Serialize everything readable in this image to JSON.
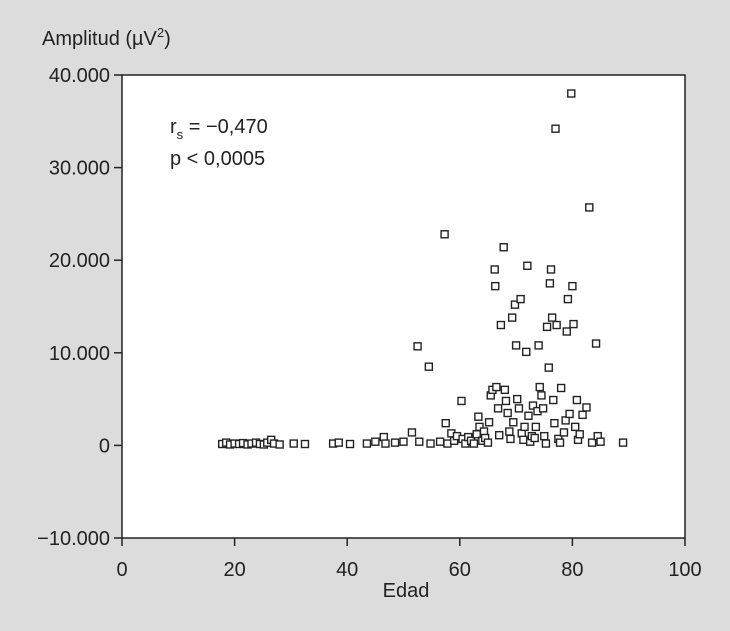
{
  "chart_data": {
    "type": "scatter",
    "ylabel": "Amplitud (µV²)",
    "ylabel_parts": {
      "main": "Amplitud (µV",
      "sup": "2",
      "close": ")"
    },
    "xlabel": "Edad",
    "xlim": [
      0,
      100
    ],
    "ylim": [
      -10000,
      40000
    ],
    "x_ticks": [
      0,
      20,
      40,
      60,
      80,
      100
    ],
    "x_tick_labels": [
      "0",
      "20",
      "40",
      "60",
      "80",
      "100"
    ],
    "y_ticks": [
      -10000,
      0,
      10000,
      20000,
      30000,
      40000
    ],
    "y_tick_labels": [
      "−10.000",
      "0",
      "10.000",
      "20.000",
      "30.000",
      "40.000"
    ],
    "grid": false,
    "annotations": {
      "rs_symbol": "r",
      "rs_sub": "s",
      "rs_value": " = −0,470",
      "p_text": "p < 0,0005"
    },
    "colors": {
      "background": "#dcdcdc",
      "plot_area": "#ffffff",
      "marker_stroke": "#222222"
    },
    "marker": "open-square",
    "series": [
      {
        "points": [
          [
            17.8,
            150
          ],
          [
            18.5,
            300
          ],
          [
            19.2,
            100
          ],
          [
            20,
            200
          ],
          [
            20.8,
            150
          ],
          [
            21.5,
            250
          ],
          [
            22.3,
            100
          ],
          [
            23,
            200
          ],
          [
            23.8,
            300
          ],
          [
            24.5,
            150
          ],
          [
            25.2,
            100
          ],
          [
            25.8,
            300
          ],
          [
            26.5,
            600
          ],
          [
            27,
            200
          ],
          [
            28,
            100
          ],
          [
            30.5,
            200
          ],
          [
            32.5,
            150
          ],
          [
            37.5,
            200
          ],
          [
            38.5,
            300
          ],
          [
            40.5,
            150
          ],
          [
            43.5,
            200
          ],
          [
            45,
            400
          ],
          [
            46.5,
            900
          ],
          [
            46.8,
            200
          ],
          [
            48.5,
            300
          ],
          [
            50,
            400
          ],
          [
            51.5,
            1400
          ],
          [
            52.5,
            10700
          ],
          [
            52.8,
            400
          ],
          [
            54.5,
            8500
          ],
          [
            54.8,
            200
          ],
          [
            56.5,
            400
          ],
          [
            57.3,
            22800
          ],
          [
            57.5,
            2400
          ],
          [
            57.8,
            200
          ],
          [
            58.5,
            1300
          ],
          [
            59,
            500
          ],
          [
            59.5,
            1000
          ],
          [
            60.3,
            4800
          ],
          [
            60.5,
            700
          ],
          [
            61,
            200
          ],
          [
            61.5,
            900
          ],
          [
            62,
            500
          ],
          [
            62.5,
            200
          ],
          [
            63,
            1200
          ],
          [
            63.3,
            3100
          ],
          [
            63.5,
            2000
          ],
          [
            64,
            500
          ],
          [
            64.3,
            1500
          ],
          [
            64.5,
            800
          ],
          [
            65,
            300
          ],
          [
            65.2,
            2500
          ],
          [
            65.5,
            5400
          ],
          [
            65.8,
            6000
          ],
          [
            66.2,
            19000
          ],
          [
            66.3,
            17200
          ],
          [
            66.5,
            6300
          ],
          [
            66.8,
            4000
          ],
          [
            67,
            1100
          ],
          [
            67.3,
            13000
          ],
          [
            67.8,
            21400
          ],
          [
            68,
            6000
          ],
          [
            68.2,
            4800
          ],
          [
            68.5,
            3500
          ],
          [
            68.8,
            1500
          ],
          [
            69,
            700
          ],
          [
            69.3,
            13800
          ],
          [
            69.5,
            2500
          ],
          [
            69.8,
            15200
          ],
          [
            70,
            10800
          ],
          [
            70.2,
            5000
          ],
          [
            70.5,
            4000
          ],
          [
            70.8,
            15800
          ],
          [
            71,
            1300
          ],
          [
            71.3,
            600
          ],
          [
            71.5,
            2000
          ],
          [
            71.8,
            10100
          ],
          [
            72,
            19400
          ],
          [
            72.2,
            3200
          ],
          [
            72.5,
            400
          ],
          [
            72.8,
            1000
          ],
          [
            73,
            4300
          ],
          [
            73.3,
            800
          ],
          [
            73.5,
            2000
          ],
          [
            73.8,
            3700
          ],
          [
            74,
            10800
          ],
          [
            74.2,
            6300
          ],
          [
            74.5,
            5400
          ],
          [
            74.8,
            4000
          ],
          [
            75,
            1000
          ],
          [
            75.3,
            200
          ],
          [
            75.5,
            12800
          ],
          [
            75.8,
            8400
          ],
          [
            76,
            17500
          ],
          [
            76.2,
            19000
          ],
          [
            76.4,
            13800
          ],
          [
            76.6,
            4900
          ],
          [
            76.8,
            2400
          ],
          [
            77,
            34200
          ],
          [
            77.2,
            13000
          ],
          [
            77.5,
            700
          ],
          [
            77.8,
            300
          ],
          [
            78,
            6200
          ],
          [
            78.5,
            1400
          ],
          [
            78.8,
            2700
          ],
          [
            79,
            12300
          ],
          [
            79.2,
            15800
          ],
          [
            79.5,
            3400
          ],
          [
            79.8,
            38000
          ],
          [
            80,
            17200
          ],
          [
            80.2,
            13100
          ],
          [
            80.5,
            2000
          ],
          [
            80.8,
            4900
          ],
          [
            81,
            600
          ],
          [
            81.3,
            1200
          ],
          [
            81.8,
            3300
          ],
          [
            82.5,
            4100
          ],
          [
            83,
            25700
          ],
          [
            83.5,
            300
          ],
          [
            84.2,
            11000
          ],
          [
            84.5,
            1000
          ],
          [
            85,
            400
          ],
          [
            89,
            300
          ]
        ]
      }
    ]
  }
}
